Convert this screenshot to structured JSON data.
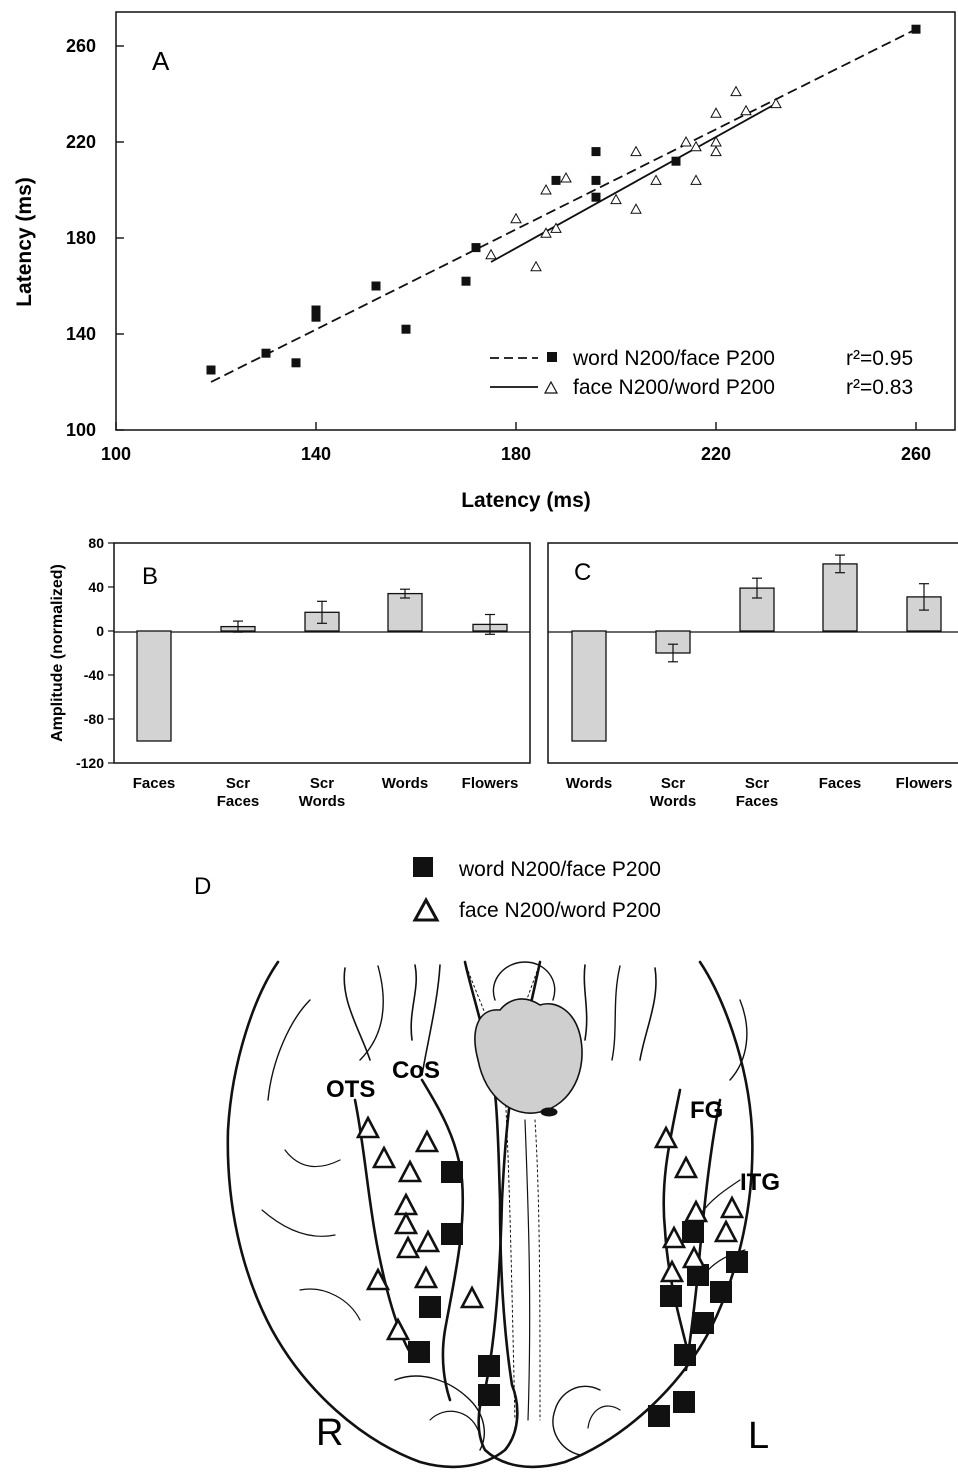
{
  "panel_labels": {
    "a": "A",
    "b": "B",
    "c": "C",
    "d": "D"
  },
  "chart_data": [
    {
      "type": "scatter",
      "panel": "A",
      "xlabel": "Latency (ms)",
      "ylabel": "Latency (ms)",
      "xlim": [
        100,
        260
      ],
      "ylim": [
        100,
        260
      ],
      "xticks": [
        "100",
        "140",
        "180",
        "220",
        "260"
      ],
      "yticks": [
        "100",
        "140",
        "180",
        "220",
        "260"
      ],
      "legend_position": "bottom-right",
      "series": [
        {
          "name": "word N200/face P200",
          "marker": "filled-square",
          "fit_line": "dashed",
          "r2_label": "r²=0.95",
          "points": [
            [
              119,
              125
            ],
            [
              130,
              132
            ],
            [
              136,
              128
            ],
            [
              140,
              150
            ],
            [
              140,
              147
            ],
            [
              152,
              160
            ],
            [
              158,
              142
            ],
            [
              170,
              162
            ],
            [
              172,
              176
            ],
            [
              188,
              204
            ],
            [
              196,
              216
            ],
            [
              196,
              204
            ],
            [
              196,
              197
            ],
            [
              212,
              212
            ],
            [
              260,
              267
            ]
          ],
          "fit": [
            [
              119,
              120
            ],
            [
              260,
              267
            ]
          ]
        },
        {
          "name": "face N200/word P200",
          "marker": "open-triangle",
          "fit_line": "solid",
          "r2_label": "r²=0.83",
          "points": [
            [
              175,
              173
            ],
            [
              180,
              188
            ],
            [
              184,
              168
            ],
            [
              186,
              182
            ],
            [
              186,
              200
            ],
            [
              188,
              184
            ],
            [
              190,
              205
            ],
            [
              200,
              196
            ],
            [
              204,
              192
            ],
            [
              204,
              216
            ],
            [
              208,
              204
            ],
            [
              214,
              220
            ],
            [
              216,
              218
            ],
            [
              216,
              204
            ],
            [
              220,
              216
            ],
            [
              220,
              220
            ],
            [
              220,
              232
            ],
            [
              224,
              241
            ],
            [
              226,
              233
            ],
            [
              232,
              236
            ]
          ],
          "fit": [
            [
              175,
              170
            ],
            [
              232,
              236
            ]
          ]
        }
      ]
    },
    {
      "type": "bar",
      "panel": "B",
      "ylabel": "Amplitude (normalized)",
      "ylim": [
        -120,
        80
      ],
      "yticks": [
        "80",
        "40",
        "0",
        "-40",
        "-80",
        "-120"
      ],
      "categories": [
        "Faces",
        "Scr\nFaces",
        "Scr\nWords",
        "Words",
        "Flowers"
      ],
      "values": [
        -100,
        4,
        17,
        34,
        6
      ],
      "errors": [
        0,
        5,
        10,
        4,
        9
      ]
    },
    {
      "type": "bar",
      "panel": "C",
      "ylim": [
        -120,
        80
      ],
      "categories": [
        "Words",
        "Scr\nWords",
        "Scr\nFaces",
        "Faces",
        "Flowers"
      ],
      "values": [
        -100,
        -20,
        39,
        61,
        31
      ],
      "errors": [
        0,
        8,
        9,
        8,
        12
      ]
    }
  ],
  "brain_map": {
    "legend": [
      {
        "label": "word N200/face P200",
        "marker": "filled-square"
      },
      {
        "label": "face N200/word P200",
        "marker": "open-triangle"
      }
    ],
    "region_labels": [
      "OTS",
      "CoS",
      "FG",
      "ITG"
    ],
    "hemisphere_labels": {
      "right": "R",
      "left": "L"
    }
  },
  "colors": {
    "ink": "#111111",
    "bar_fill": "#d3d3d3",
    "stipple": "#cfcfcf"
  }
}
